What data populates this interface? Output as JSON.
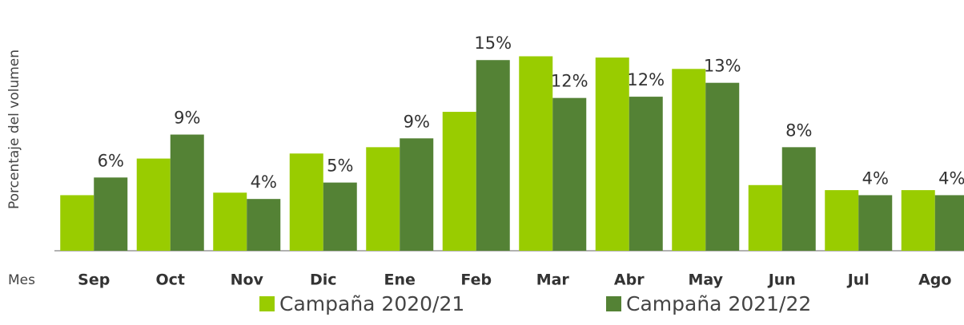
{
  "chart_data": {
    "type": "bar",
    "y_label": "Porcentaje del volumen",
    "x_label": "Mes",
    "categories": [
      "Sep",
      "Oct",
      "Nov",
      "Dic",
      "Ene",
      "Feb",
      "Mar",
      "Abr",
      "May",
      "Jun",
      "Jul",
      "Ago"
    ],
    "series": [
      {
        "name": "Campaña 2020/21",
        "color": "#99cc00",
        "values": [
          4.4,
          7.3,
          4.6,
          7.7,
          8.2,
          11.0,
          15.4,
          15.3,
          14.4,
          5.2,
          4.8,
          4.8
        ]
      },
      {
        "name": "Campaña 2021/22",
        "color": "#548235",
        "values": [
          5.8,
          9.2,
          4.1,
          5.4,
          8.9,
          15.1,
          12.1,
          12.2,
          13.3,
          8.2,
          4.4,
          4.4
        ],
        "value_labels": [
          "6%",
          "9%",
          "4%",
          "5%",
          "9%",
          "15%",
          "12%",
          "12%",
          "13%",
          "8%",
          "4%",
          "4%"
        ]
      }
    ],
    "ylim": [
      0,
      16
    ]
  }
}
